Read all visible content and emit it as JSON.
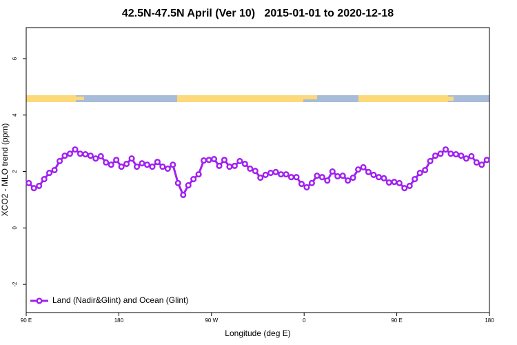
{
  "chart_data": {
    "type": "line",
    "title": "42.5N-47.5N April (Ver 10)   2015-01-01 to 2020-12-18",
    "xlabel": "Longitude (deg E)",
    "ylabel": "XCO2 - MLO trend (ppm)",
    "xlim": [
      90,
      540
    ],
    "ylim": [
      -3,
      7.1
    ],
    "xticks": [
      {
        "value": 90,
        "label": "90 E"
      },
      {
        "value": 180,
        "label": "180"
      },
      {
        "value": 270,
        "label": "90 W"
      },
      {
        "value": 360,
        "label": "0"
      },
      {
        "value": 450,
        "label": "90 E"
      },
      {
        "value": 540,
        "label": "180"
      }
    ],
    "yticks": [
      -2,
      0,
      2,
      4,
      6
    ],
    "legend": "bottom-left",
    "x": [
      92.5,
      97.5,
      102.5,
      107.5,
      112.5,
      117.5,
      122.5,
      127.5,
      132.5,
      137.5,
      142.5,
      147.5,
      152.5,
      157.5,
      162.5,
      167.5,
      172.5,
      177.5,
      182.5,
      187.5,
      192.5,
      197.5,
      202.5,
      207.5,
      212.5,
      217.5,
      222.5,
      227.5,
      232.5,
      237.5,
      242.5,
      247.5,
      252.5,
      257.5,
      262.5,
      267.5,
      272.5,
      277.5,
      282.5,
      287.5,
      292.5,
      297.5,
      302.5,
      307.5,
      312.5,
      317.5,
      322.5,
      327.5,
      332.5,
      337.5,
      342.5,
      347.5,
      352.5,
      357.5,
      362.5,
      367.5,
      372.5,
      377.5,
      382.5,
      387.5,
      392.5,
      397.5,
      402.5,
      407.5,
      412.5,
      417.5,
      422.5,
      427.5,
      432.5,
      437.5,
      442.5,
      447.5,
      452.5,
      457.5,
      462.5,
      467.5,
      472.5,
      477.5,
      482.5,
      487.5,
      492.5,
      497.5,
      502.5,
      507.5,
      512.5,
      517.5,
      522.5,
      527.5,
      532.5,
      537.5
    ],
    "series": [
      {
        "name": "Land (Nadir&Glint) and Ocean (Glint)",
        "color": "#a020f0",
        "values": [
          1.59,
          1.41,
          1.49,
          1.73,
          1.95,
          2.05,
          2.37,
          2.56,
          2.63,
          2.78,
          2.63,
          2.61,
          2.56,
          2.46,
          2.54,
          2.32,
          2.24,
          2.41,
          2.17,
          2.27,
          2.46,
          2.17,
          2.29,
          2.24,
          2.17,
          2.34,
          2.17,
          2.1,
          2.24,
          1.59,
          1.17,
          1.51,
          1.73,
          1.9,
          2.39,
          2.41,
          2.44,
          2.2,
          2.41,
          2.17,
          2.2,
          2.37,
          2.27,
          2.1,
          2.02,
          1.78,
          1.88,
          1.95,
          1.98,
          1.9,
          1.9,
          1.8,
          1.8,
          1.56,
          1.44,
          1.59,
          1.85,
          1.8,
          1.68,
          2.0,
          1.83,
          1.85,
          1.68,
          1.78,
          2.07,
          2.15,
          1.98,
          1.88,
          1.8,
          1.76,
          1.61,
          1.63,
          1.59,
          1.41,
          1.49,
          1.73,
          1.95,
          2.05,
          2.37,
          2.56,
          2.63,
          2.78,
          2.63,
          2.61,
          2.56,
          2.46,
          2.54,
          2.32,
          2.24,
          2.41
        ]
      }
    ]
  }
}
